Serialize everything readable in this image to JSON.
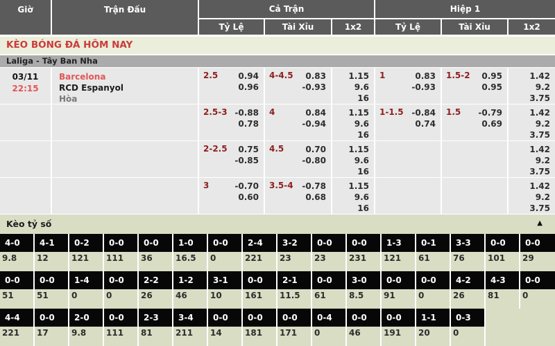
{
  "colors": {
    "header-bg": "#5b5b5b",
    "header-text": "#ffffff",
    "accent-red": "#cc3a3a",
    "team-red": "#e25656",
    "maroon": "#8e1f1f",
    "section-bg": "#eaeeda",
    "league-bg": "#ababab",
    "cell-bg": "#e8e8e8",
    "score-section-bg": "#d9ddc4",
    "score-cell-bg": "#070707",
    "odds-text": "#2d2d2d"
  },
  "header": {
    "col_time": "Giờ",
    "col_match": "Trận Đấu",
    "col_full": "Cả Trận",
    "col_half": "Hiệp 1",
    "sub": {
      "hcp": "Tỷ Lệ",
      "ou": "Tài Xỉu",
      "x12": "1x2"
    }
  },
  "page_title": "KÈO BÓNG ĐÁ HÔM NAY",
  "league": "Laliga - Tây Ban Nha",
  "match": {
    "date": "03/11",
    "time": "22:15",
    "home": "Barcelona",
    "away": "RCD Espanyol",
    "draw_label": "Hòa"
  },
  "odds_rows": [
    {
      "ft_hcp": "2.5",
      "ft_hcp_odds": [
        "0.94",
        "0.96"
      ],
      "ft_ou": "4-4.5",
      "ft_ou_odds": [
        "0.83",
        "-0.93"
      ],
      "ft_1x2": [
        "1.15",
        "9.6",
        "16"
      ],
      "h1_hcp": "1",
      "h1_hcp_odds": [
        "0.83",
        "-0.93"
      ],
      "h1_ou": "1.5-2",
      "h1_ou_odds": [
        "0.95",
        "0.95"
      ],
      "h1_1x2": [
        "1.42",
        "9.2",
        "3.75"
      ]
    },
    {
      "ft_hcp": "2.5-3",
      "ft_hcp_odds": [
        "-0.88",
        "0.78"
      ],
      "ft_ou": "4",
      "ft_ou_odds": [
        "0.84",
        "-0.94"
      ],
      "ft_1x2": [
        "1.15",
        "9.6",
        "16"
      ],
      "h1_hcp": "1-1.5",
      "h1_hcp_odds": [
        "-0.84",
        "0.74"
      ],
      "h1_ou": "1.5",
      "h1_ou_odds": [
        "-0.79",
        "0.69"
      ],
      "h1_1x2": [
        "1.42",
        "9.2",
        "3.75"
      ]
    },
    {
      "ft_hcp": "2-2.5",
      "ft_hcp_odds": [
        "0.75",
        "-0.85"
      ],
      "ft_ou": "4.5",
      "ft_ou_odds": [
        "0.70",
        "-0.80"
      ],
      "ft_1x2": [
        "1.15",
        "9.6",
        "16"
      ],
      "h1_hcp": "",
      "h1_hcp_odds": [],
      "h1_ou": "",
      "h1_ou_odds": [],
      "h1_1x2": [
        "1.42",
        "9.2",
        "3.75"
      ]
    },
    {
      "ft_hcp": "3",
      "ft_hcp_odds": [
        "-0.70",
        "0.60"
      ],
      "ft_ou": "3.5-4",
      "ft_ou_odds": [
        "-0.78",
        "0.68"
      ],
      "ft_1x2": [
        "1.15",
        "9.6",
        "16"
      ],
      "h1_hcp": "",
      "h1_hcp_odds": [],
      "h1_ou": "",
      "h1_ou_odds": [],
      "h1_1x2": [
        "1.42",
        "9.2",
        "3.75"
      ]
    }
  ],
  "score_section": {
    "title": "Kèo tỷ số",
    "collapse_icon": "▲",
    "rows": [
      [
        {
          "s": "4-0",
          "v": "9.8"
        },
        {
          "s": "4-1",
          "v": "12"
        },
        {
          "s": "0-2",
          "v": "121"
        },
        {
          "s": "0-0",
          "v": "111"
        },
        {
          "s": "0-0",
          "v": "36"
        },
        {
          "s": "1-0",
          "v": "16.5"
        },
        {
          "s": "0-0",
          "v": "0"
        },
        {
          "s": "2-4",
          "v": "221"
        },
        {
          "s": "3-2",
          "v": "23"
        },
        {
          "s": "0-0",
          "v": "23"
        },
        {
          "s": "0-0",
          "v": "231"
        },
        {
          "s": "1-3",
          "v": "121"
        },
        {
          "s": "0-1",
          "v": "61"
        },
        {
          "s": "3-3",
          "v": "76"
        },
        {
          "s": "0-0",
          "v": "101"
        },
        {
          "s": "0-0",
          "v": "29"
        }
      ],
      [
        {
          "s": "0-0",
          "v": "51"
        },
        {
          "s": "0-0",
          "v": "51"
        },
        {
          "s": "1-4",
          "v": "0"
        },
        {
          "s": "0-0",
          "v": "0"
        },
        {
          "s": "2-2",
          "v": "26"
        },
        {
          "s": "1-2",
          "v": "46"
        },
        {
          "s": "3-1",
          "v": "10"
        },
        {
          "s": "0-0",
          "v": "161"
        },
        {
          "s": "2-1",
          "v": "11.5"
        },
        {
          "s": "0-0",
          "v": "61"
        },
        {
          "s": "3-0",
          "v": "8.5"
        },
        {
          "s": "0-0",
          "v": "91"
        },
        {
          "s": "0-0",
          "v": "0"
        },
        {
          "s": "4-2",
          "v": "26"
        },
        {
          "s": "4-3",
          "v": "81"
        },
        {
          "s": "0-0",
          "v": "0"
        }
      ],
      [
        {
          "s": "4-4",
          "v": "221"
        },
        {
          "s": "0-0",
          "v": "17"
        },
        {
          "s": "2-0",
          "v": "9.8"
        },
        {
          "s": "0-0",
          "v": "111"
        },
        {
          "s": "2-3",
          "v": "81"
        },
        {
          "s": "3-4",
          "v": "211"
        },
        {
          "s": "0-0",
          "v": "14"
        },
        {
          "s": "0-0",
          "v": "181"
        },
        {
          "s": "0-0",
          "v": "171"
        },
        {
          "s": "0-4",
          "v": "0"
        },
        {
          "s": "0-0",
          "v": "46"
        },
        {
          "s": "0-0",
          "v": "191"
        },
        {
          "s": "1-1",
          "v": "20"
        },
        {
          "s": "0-3",
          "v": "0"
        },
        null,
        null
      ]
    ]
  }
}
